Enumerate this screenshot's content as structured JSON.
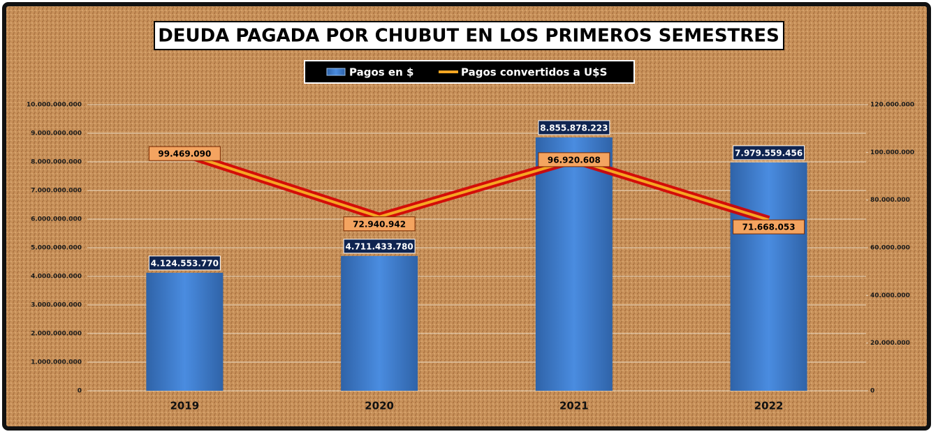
{
  "chart_data": {
    "type": "combo",
    "title": "DEUDA PAGADA POR CHUBUT EN LOS PRIMEROS SEMESTRES",
    "categories": [
      "2019",
      "2020",
      "2021",
      "2022"
    ],
    "series": [
      {
        "name": "Pagos en $",
        "type": "bar",
        "color": "#3f7fd0",
        "values": [
          4124553770,
          4711433780,
          8855878223,
          7979559456
        ],
        "value_labels": [
          "4.124.553.770",
          "4.711.433.780",
          "8.855.878.223",
          "7.979.559.456"
        ]
      },
      {
        "name": "Pagos convertidos a U$S",
        "type": "line",
        "axis": "y2",
        "color": "#f5a623",
        "values": [
          99469090,
          72940942,
          96920608,
          71668053
        ],
        "value_labels": [
          "99.469.090",
          "72.940.942",
          "96.920.608",
          "71.668.053"
        ]
      }
    ],
    "ylim": [
      0,
      10000000000
    ],
    "yticks": [
      0,
      {
        "value": 1000000000,
        "label": "1.000.000.000"
      },
      {
        "value": 2000000000,
        "label": "2.000.000.000"
      },
      {
        "value": 3000000000,
        "label": "3.000.000.000"
      },
      {
        "value": 4000000000,
        "label": "4.000.000.000"
      },
      {
        "value": 5000000000,
        "label": "5.000.000.000"
      },
      {
        "value": 6000000000,
        "label": "6.000.000.000"
      },
      {
        "value": 7000000000,
        "label": "7.000.000.000"
      },
      {
        "value": 8000000000,
        "label": "8.000.000.000"
      },
      {
        "value": 9000000000,
        "label": "9.000.000.000"
      },
      {
        "value": 10000000000,
        "label": "10.000.000.000"
      }
    ],
    "y2lim": [
      0,
      120000000
    ],
    "y2ticks": [
      0,
      {
        "value": 20000000,
        "label": "20.000.000"
      },
      {
        "value": 40000000,
        "label": "40.000.000"
      },
      {
        "value": 60000000,
        "label": "60.000.000"
      },
      {
        "value": 80000000,
        "label": "80.000.000"
      },
      {
        "value": 100000000,
        "label": "100.000.000"
      },
      {
        "value": 120000000,
        "label": "120.000.000"
      }
    ],
    "grid": true
  }
}
